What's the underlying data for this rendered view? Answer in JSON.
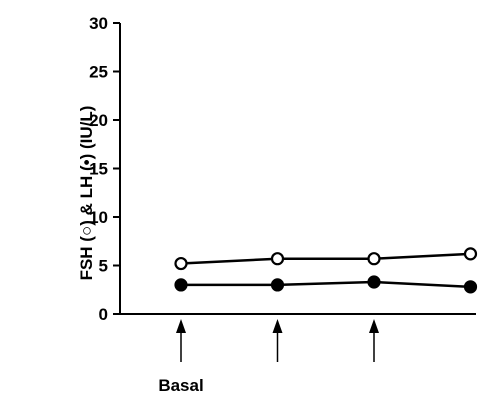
{
  "chart_data": {
    "type": "line",
    "title": "",
    "xlabel": "",
    "ylabel": "FSH (○) & LH (•) (IU/L)",
    "ylim": [
      0,
      30
    ],
    "yticks": [
      0,
      5,
      10,
      15,
      20,
      25,
      30
    ],
    "x": [
      1,
      2,
      3,
      4
    ],
    "series": [
      {
        "id": "fsh",
        "marker": "open-circle",
        "values": [
          5.2,
          5.7,
          5.7,
          6.2
        ]
      },
      {
        "id": "lh",
        "marker": "filled-circle",
        "values": [
          3.0,
          3.0,
          3.3,
          2.8
        ]
      }
    ],
    "annotations": {
      "arrows_at_x": [
        1,
        2,
        3
      ],
      "label": "Basal",
      "label_at_x": 1
    },
    "grid": false,
    "colors": {
      "line": "#000000",
      "marker_fill_open": "#ffffff",
      "marker_fill_filled": "#000000"
    }
  }
}
